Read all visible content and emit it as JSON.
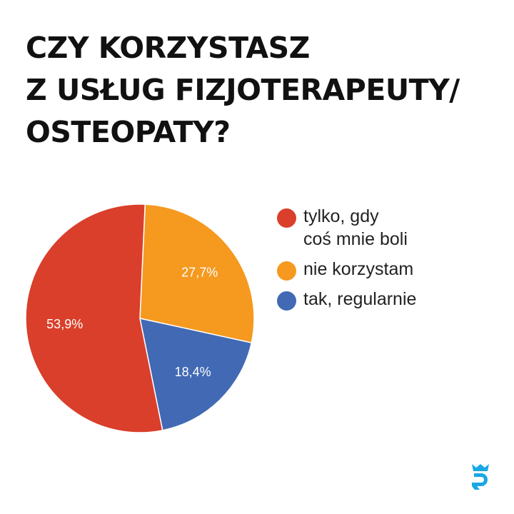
{
  "title": {
    "line1": "CZY KORZYSTASZ",
    "line2": "Z USŁUG FIZJOTERAPEUTY/",
    "line3": "OSTEOPATY?"
  },
  "legend": [
    {
      "label": "tylko, gdy\ncoś mnie boli",
      "color": "#d93f2a"
    },
    {
      "label": "nie korzystam",
      "color": "#f5991f"
    },
    {
      "label": "tak, regularnie",
      "color": "#4169b4"
    }
  ],
  "chart_data": {
    "type": "pie",
    "slices": [
      {
        "label": "tylko, gdy coś mnie boli",
        "value": 53.9,
        "display": "53,9%",
        "color": "#d93f2a"
      },
      {
        "label": "nie korzystam",
        "value": 27.7,
        "display": "27,7%",
        "color": "#f5991f"
      },
      {
        "label": "tak, regularnie",
        "value": 18.4,
        "display": "18,4%",
        "color": "#4169b4"
      }
    ]
  },
  "logo": {
    "icon": "brand-logo-icon",
    "color": "#1aa7e6"
  }
}
